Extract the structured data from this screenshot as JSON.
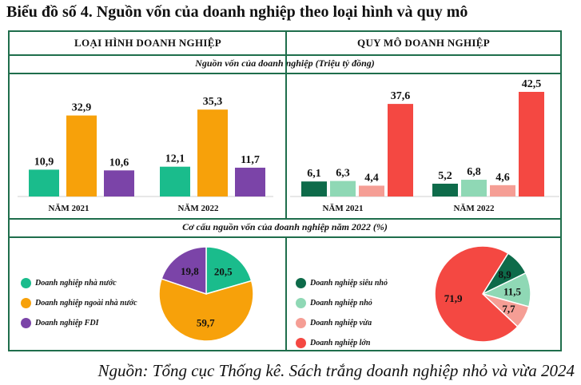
{
  "title": "Biểu đồ số 4. Nguồn vốn của doanh nghiệp theo loại hình và quy mô",
  "headers": {
    "left": "LOẠI HÌNH DOANH NGHIỆP",
    "right": "QUY MÔ DOANH NGHIỆP",
    "bar_subtitle": "Nguồn vốn của doanh nghiệp (Triệu tỷ đồng)",
    "pie_subtitle": "Cơ cấu nguồn vốn của doanh nghiệp năm 2022 (%)"
  },
  "source": "Nguồn: Tổng cục Thống kê. Sách trắng doanh nghiệp nhỏ và vừa 2024",
  "chart_data": [
    {
      "type": "bar",
      "panel": "type",
      "categories": [
        "NĂM 2021",
        "NĂM 2022"
      ],
      "series": [
        {
          "name": "Doanh nghiệp nhà nước",
          "color": "#1abc8c",
          "values": [
            10.9,
            12.1
          ],
          "labels": [
            "10,9",
            "12,1"
          ]
        },
        {
          "name": "Doanh nghiệp ngoài nhà nước",
          "color": "#f7a10a",
          "values": [
            32.9,
            35.3
          ],
          "labels": [
            "32,9",
            "35,3"
          ]
        },
        {
          "name": "Doanh nghiệp FDI",
          "color": "#7b44a8",
          "values": [
            10.6,
            11.7
          ],
          "labels": [
            "10,6",
            "11,7"
          ]
        }
      ]
    },
    {
      "type": "bar",
      "panel": "size",
      "categories": [
        "NĂM 2021",
        "NĂM 2022"
      ],
      "series": [
        {
          "name": "Doanh nghiệp siêu nhỏ",
          "color": "#0e6b4a",
          "values": [
            6.1,
            5.2
          ],
          "labels": [
            "6,1",
            "5,2"
          ]
        },
        {
          "name": "Doanh nghiệp nhỏ",
          "color": "#8fd8b5",
          "values": [
            6.3,
            6.8
          ],
          "labels": [
            "6,3",
            "6,8"
          ]
        },
        {
          "name": "Doanh nghiệp vừa",
          "color": "#f59e95",
          "values": [
            4.4,
            4.6
          ],
          "labels": [
            "4,4",
            "4,6"
          ]
        },
        {
          "name": "Doanh nghiệp lớn",
          "color": "#f44842",
          "values": [
            37.6,
            42.5
          ],
          "labels": [
            "37,6",
            "42,5"
          ]
        }
      ]
    },
    {
      "type": "pie",
      "panel": "type",
      "slices": [
        {
          "name": "Doanh nghiệp nhà nước",
          "color": "#1abc8c",
          "value": 20.5,
          "label": "20,5"
        },
        {
          "name": "Doanh nghiệp ngoài nhà nước",
          "color": "#f7a10a",
          "value": 59.7,
          "label": "59,7"
        },
        {
          "name": "Doanh nghiệp FDI",
          "color": "#7b44a8",
          "value": 19.8,
          "label": "19,8"
        }
      ]
    },
    {
      "type": "pie",
      "panel": "size",
      "slices": [
        {
          "name": "Doanh nghiệp siêu nhỏ",
          "color": "#0e6b4a",
          "value": 8.9,
          "label": "8,9"
        },
        {
          "name": "Doanh nghiệp nhỏ",
          "color": "#8fd8b5",
          "value": 11.5,
          "label": "11,5"
        },
        {
          "name": "Doanh nghiệp vừa",
          "color": "#f59e95",
          "value": 7.7,
          "label": "7,7"
        },
        {
          "name": "Doanh nghiệp lớn",
          "color": "#f44842",
          "value": 71.9,
          "label": "71,9"
        }
      ]
    }
  ]
}
